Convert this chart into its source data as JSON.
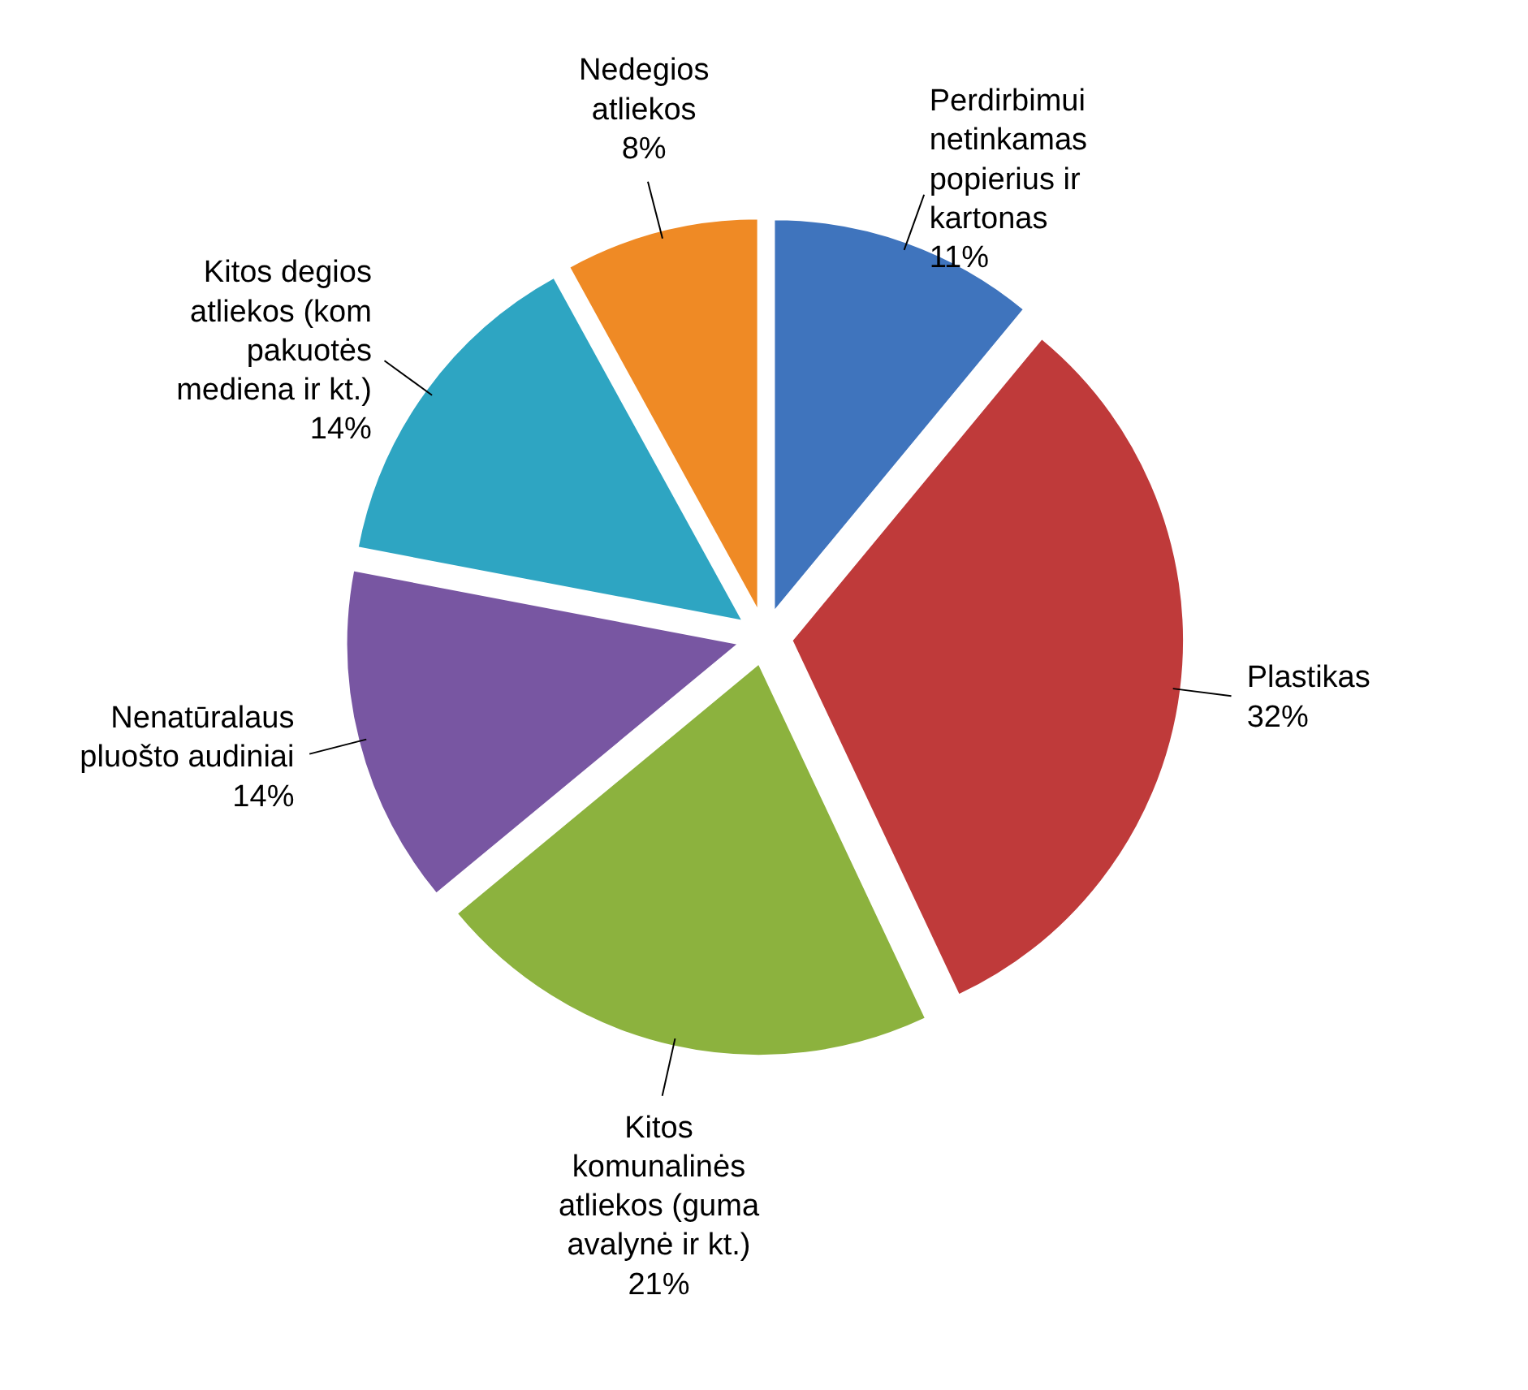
{
  "chart_data": {
    "type": "pie",
    "categories": [
      "Perdirbimui\nnetinkamas\npopierius ir\nkartonas",
      "Plastikas",
      "Kitos\nkomunalinės\natliekos (guma\navalynė ir kt.)",
      "Nenatūralaus\npluošto audiniai",
      "Kitos degios\natliekos (kom\npakuotės\nmediena ir kt.)",
      "Nedegios\natliekos"
    ],
    "values": [
      11,
      32,
      21,
      14,
      14,
      8
    ],
    "colors": [
      "#3f74bd",
      "#bf3a3a",
      "#8cb23e",
      "#7856a2",
      "#2ea5c2",
      "#ef8a25"
    ],
    "value_labels": [
      "11%",
      "32%",
      "21%",
      "14%",
      "14%",
      "8%"
    ]
  }
}
